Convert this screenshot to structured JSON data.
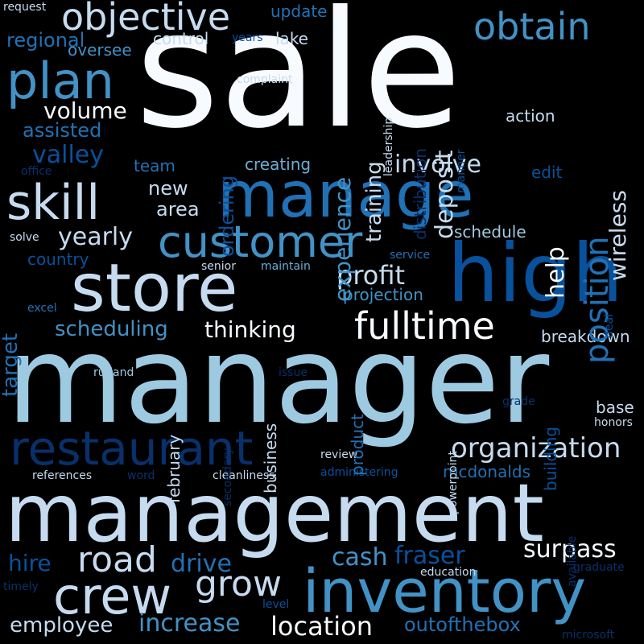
{
  "palette": {
    "background": "#000000",
    "white": "#f7fbff",
    "pale": "#c6dbef",
    "light": "#9ecae1",
    "mid": "#6baed6",
    "medium": "#4292c6",
    "strong": "#2171b5",
    "deep": "#08519c",
    "darkest": "#08306b"
  },
  "words": {
    "sale": "sale",
    "manager": "manager",
    "management": "management",
    "manage": "manage",
    "high": "high",
    "store": "store",
    "customer": "customer",
    "inventory": "inventory",
    "restaurant": "restaurant",
    "crew": "crew",
    "skill": "skill",
    "plan": "plan",
    "objective": "objective",
    "obtain": "obtain",
    "fulltime": "fulltime",
    "road": "road",
    "grow": "grow",
    "position": "position",
    "organization": "organization",
    "location": "location",
    "increase": "increase",
    "employee": "employee",
    "profit": "profit",
    "thinking": "thinking",
    "involve": "involve",
    "surpass": "surpass",
    "cash": "cash",
    "fraser": "fraser",
    "drive": "drive",
    "hire": "hire",
    "outofthebox": "outofthebox",
    "scheduling": "scheduling",
    "yearly": "yearly",
    "volume": "volume",
    "valley": "valley",
    "assisted": "assisted",
    "regional": "regional",
    "oversee": "oversee",
    "control": "control",
    "lake": "lake",
    "years": "years",
    "update": "update",
    "request": "request",
    "complaint": "complaint",
    "action": "action",
    "creating": "creating",
    "team": "team",
    "office": "office",
    "new": "new",
    "area": "area",
    "edit": "edit",
    "schedule": "schedule",
    "service": "service",
    "senior": "senior",
    "maintain": "maintain",
    "solve": "solve",
    "country": "country",
    "excel": "excel",
    "projection": "projection",
    "breakdown": "breakdown",
    "rutland": "rutland",
    "issue": "issue",
    "base": "base",
    "grade": "grade",
    "honors": "honors",
    "review": "review",
    "administering": "administering",
    "mcdonalds": "mcdonalds",
    "references": "references",
    "word": "word",
    "cleanliness": "cleanliness",
    "education": "education",
    "graduate": "graduate",
    "timely": "timely",
    "level": "level",
    "microsoft": "microsoft",
    "deposit": "deposit",
    "experience": "experience",
    "training": "training",
    "distribution": "distribution",
    "leadership": "leadership",
    "manner": "manner",
    "ordering": "ordering",
    "wireless": "wireless",
    "help": "help",
    "target": "target",
    "february": "february",
    "secondary": "secondary",
    "business": "business",
    "product": "product",
    "powerpoint": "powerpoint",
    "building": "building",
    "deal": "deal",
    "available": "available"
  }
}
